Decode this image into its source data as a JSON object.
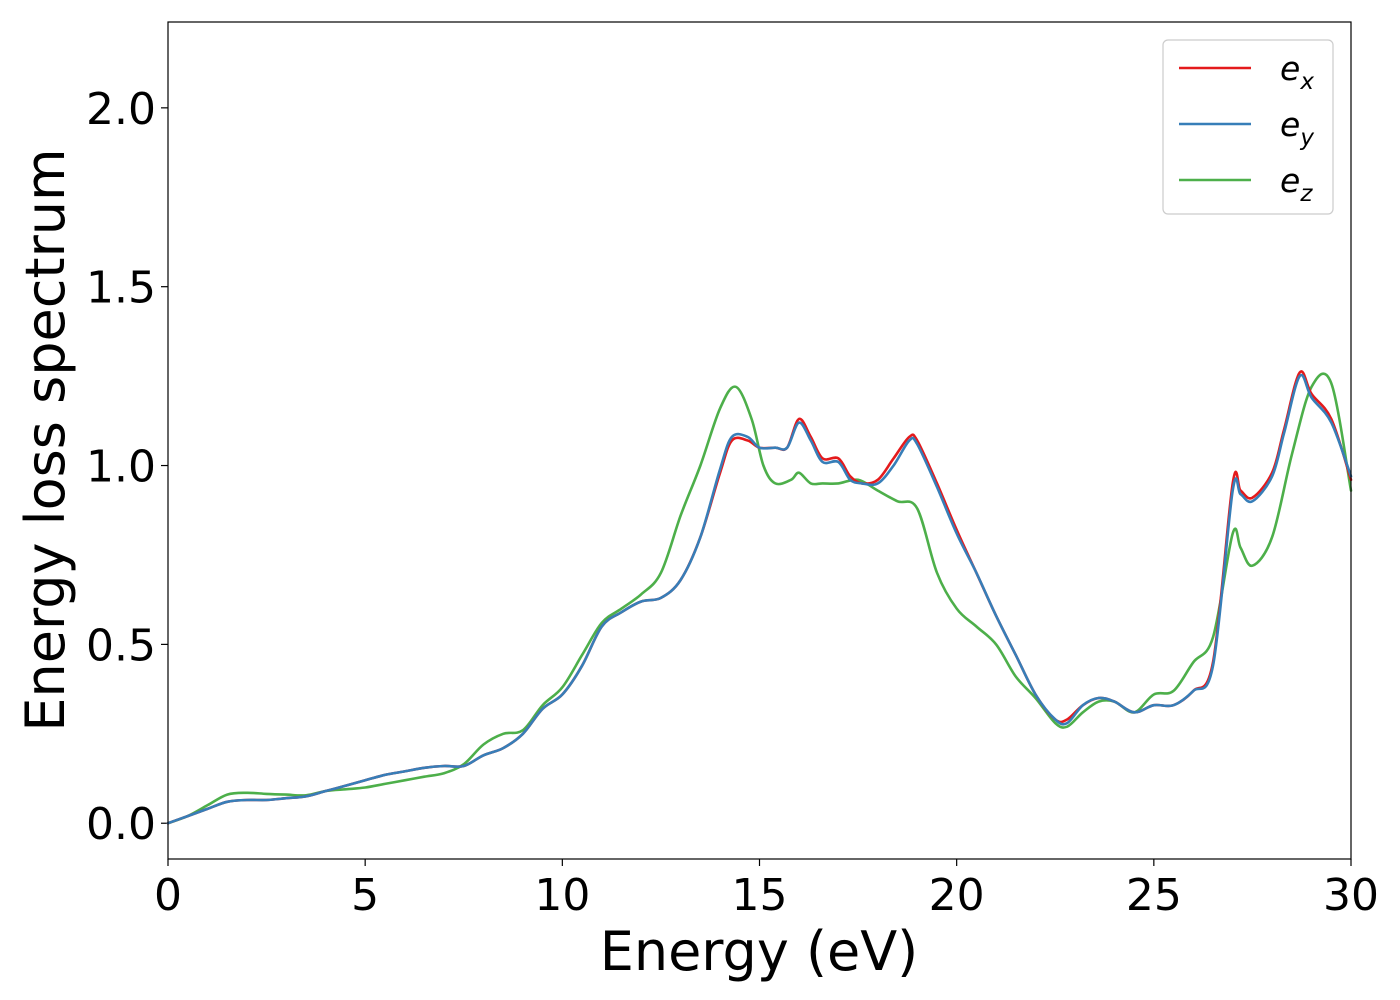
{
  "chart_data": {
    "type": "line",
    "title": "",
    "xlabel": "Energy (eV)",
    "ylabel": "Energy loss spectrum",
    "xlim": [
      0,
      30
    ],
    "ylim": [
      -0.1,
      2.24
    ],
    "xticks": [
      0,
      5,
      10,
      15,
      20,
      25,
      30
    ],
    "xtick_labels": [
      "0",
      "5",
      "10",
      "15",
      "20",
      "25",
      "30"
    ],
    "yticks": [
      0.0,
      0.5,
      1.0,
      1.5,
      2.0
    ],
    "ytick_labels": [
      "0.0",
      "0.5",
      "1.0",
      "1.5",
      "2.0"
    ],
    "grid": false,
    "legend_position": "top-right",
    "series": [
      {
        "name": "e_x",
        "label_base": "e",
        "label_sub": "x",
        "color": "#e41a1c",
        "x": [
          0,
          0.5,
          1,
          1.5,
          2,
          2.5,
          3,
          3.5,
          4,
          4.5,
          5,
          5.5,
          6,
          6.5,
          7,
          7.5,
          8,
          8.5,
          9,
          9.5,
          10,
          10.5,
          11,
          11.5,
          12,
          12.5,
          13,
          13.5,
          14,
          14.3,
          14.7,
          15,
          15.4,
          15.7,
          16,
          16.3,
          16.6,
          17,
          17.3,
          17.6,
          18,
          18.4,
          18.8,
          19,
          19.5,
          20,
          20.5,
          21,
          21.5,
          22,
          22.5,
          22.8,
          23.2,
          23.6,
          24,
          24.5,
          25,
          25.5,
          26,
          26.5,
          27,
          27.2,
          27.5,
          28,
          28.3,
          28.7,
          29,
          29.5,
          30
        ],
        "y": [
          0,
          0.02,
          0.04,
          0.06,
          0.065,
          0.065,
          0.07,
          0.075,
          0.09,
          0.105,
          0.12,
          0.135,
          0.145,
          0.155,
          0.16,
          0.16,
          0.19,
          0.21,
          0.25,
          0.32,
          0.36,
          0.44,
          0.55,
          0.59,
          0.62,
          0.63,
          0.68,
          0.8,
          0.98,
          1.07,
          1.07,
          1.05,
          1.05,
          1.05,
          1.13,
          1.08,
          1.02,
          1.02,
          0.97,
          0.95,
          0.96,
          1.02,
          1.08,
          1.07,
          0.95,
          0.82,
          0.7,
          0.58,
          0.47,
          0.36,
          0.29,
          0.29,
          0.33,
          0.35,
          0.34,
          0.31,
          0.33,
          0.33,
          0.37,
          0.45,
          0.95,
          0.93,
          0.91,
          0.98,
          1.1,
          1.26,
          1.2,
          1.13,
          0.96
        ]
      },
      {
        "name": "e_y",
        "label_base": "e",
        "label_sub": "y",
        "color": "#377eb8",
        "x": [
          0,
          0.5,
          1,
          1.5,
          2,
          2.5,
          3,
          3.5,
          4,
          4.5,
          5,
          5.5,
          6,
          6.5,
          7,
          7.5,
          8,
          8.5,
          9,
          9.5,
          10,
          10.5,
          11,
          11.5,
          12,
          12.5,
          13,
          13.5,
          14,
          14.3,
          14.7,
          15,
          15.4,
          15.7,
          16,
          16.3,
          16.6,
          17,
          17.3,
          17.6,
          18,
          18.4,
          18.8,
          19,
          19.5,
          20,
          20.5,
          21,
          21.5,
          22,
          22.5,
          22.8,
          23.2,
          23.6,
          24,
          24.5,
          25,
          25.5,
          26,
          26.5,
          27,
          27.2,
          27.5,
          28,
          28.3,
          28.7,
          29,
          29.5,
          30
        ],
        "y": [
          0,
          0.02,
          0.04,
          0.06,
          0.065,
          0.065,
          0.07,
          0.075,
          0.09,
          0.105,
          0.12,
          0.135,
          0.145,
          0.155,
          0.16,
          0.16,
          0.19,
          0.21,
          0.25,
          0.32,
          0.36,
          0.44,
          0.55,
          0.59,
          0.62,
          0.63,
          0.68,
          0.8,
          0.99,
          1.08,
          1.08,
          1.05,
          1.05,
          1.05,
          1.12,
          1.07,
          1.01,
          1.01,
          0.96,
          0.95,
          0.95,
          1.0,
          1.07,
          1.06,
          0.94,
          0.81,
          0.7,
          0.58,
          0.47,
          0.36,
          0.29,
          0.28,
          0.33,
          0.35,
          0.34,
          0.31,
          0.33,
          0.33,
          0.37,
          0.44,
          0.93,
          0.92,
          0.9,
          0.97,
          1.09,
          1.25,
          1.19,
          1.12,
          0.97
        ]
      },
      {
        "name": "e_z",
        "label_base": "e",
        "label_sub": "z",
        "color": "#4daf4a",
        "x": [
          0,
          0.5,
          1,
          1.5,
          2,
          2.5,
          3,
          3.5,
          4,
          4.5,
          5,
          5.5,
          6,
          6.5,
          7,
          7.5,
          8,
          8.5,
          9,
          9.5,
          10,
          10.5,
          11,
          11.5,
          12,
          12.5,
          13,
          13.5,
          14,
          14.4,
          14.8,
          15.1,
          15.4,
          15.8,
          16,
          16.3,
          16.6,
          17,
          17.5,
          18,
          18.5,
          19,
          19.5,
          20,
          20.5,
          21,
          21.5,
          22,
          22.5,
          22.8,
          23.2,
          23.6,
          24,
          24.5,
          25,
          25.5,
          26,
          26.5,
          27,
          27.2,
          27.5,
          28,
          28.5,
          29,
          29.5,
          30
        ],
        "y": [
          0,
          0.02,
          0.05,
          0.08,
          0.085,
          0.082,
          0.08,
          0.078,
          0.09,
          0.095,
          0.1,
          0.11,
          0.12,
          0.13,
          0.14,
          0.165,
          0.22,
          0.25,
          0.26,
          0.33,
          0.38,
          0.47,
          0.56,
          0.6,
          0.64,
          0.7,
          0.86,
          1.0,
          1.16,
          1.22,
          1.13,
          1.0,
          0.95,
          0.96,
          0.98,
          0.95,
          0.95,
          0.95,
          0.96,
          0.93,
          0.9,
          0.88,
          0.7,
          0.6,
          0.55,
          0.5,
          0.41,
          0.35,
          0.28,
          0.27,
          0.31,
          0.34,
          0.34,
          0.31,
          0.36,
          0.37,
          0.45,
          0.52,
          0.81,
          0.77,
          0.72,
          0.8,
          1.03,
          1.22,
          1.23,
          0.93
        ]
      }
    ]
  }
}
